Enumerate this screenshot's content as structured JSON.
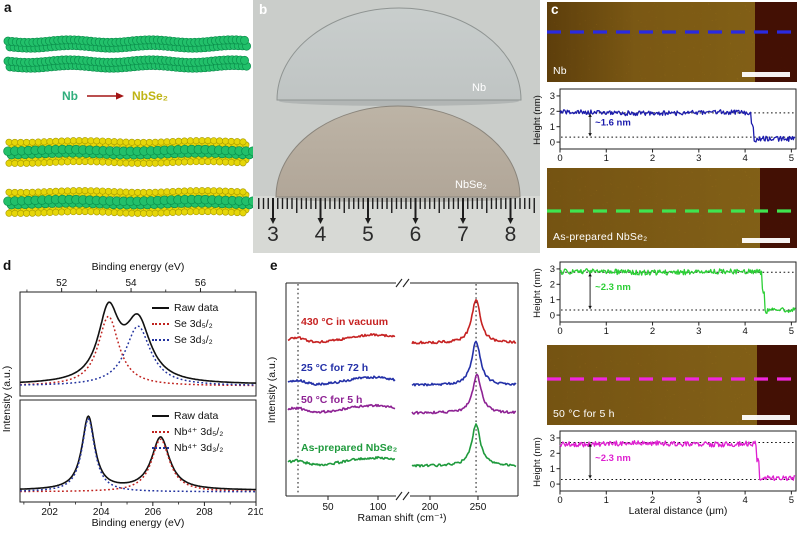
{
  "panels": {
    "a": {
      "label": "a",
      "reaction": {
        "from": "Nb",
        "to": "NbSe₂"
      },
      "colors": {
        "nb_atom": "#22c06a",
        "nb_atom_edge": "#0b8f4c",
        "se_atom": "#e6d609",
        "se_atom_edge": "#a79b00",
        "bond": "#86e3cf",
        "from_text": "#2fae7c",
        "to_text": "#bfb414",
        "arrow": "#a31515"
      }
    },
    "b": {
      "label": "b",
      "wafers": [
        {
          "label": "Nb"
        },
        {
          "label": "NbSe₂"
        }
      ],
      "ruler_numbers": [
        "3",
        "4",
        "5",
        "6",
        "7",
        "8"
      ]
    },
    "c": {
      "label": "c",
      "ylabel": "Height (nm)",
      "xlabel": "Lateral distance (μm)",
      "blocks": [
        {
          "image_label": "Nb",
          "annotation": "~1.6 nm",
          "scanline_color": "#2a2ae0"
        },
        {
          "image_label": "As-prepared NbSe₂",
          "annotation": "~2.3 nm",
          "scanline_color": "#3fe44f"
        },
        {
          "image_label": "50 °C for 5 h",
          "annotation": "~2.3 nm",
          "scanline_color": "#f026dd"
        }
      ]
    },
    "d": {
      "label": "d",
      "top_axis_title": "Binding energy (eV)",
      "bottom_axis_title": "Binding energy (eV)",
      "ylabel": "Intensity (a.u.)",
      "legend_top": [
        {
          "label": "Raw data",
          "color": "#111111",
          "style": "solid"
        },
        {
          "label": "Se 3d₅/₂",
          "color": "#c0231f",
          "style": "dotted"
        },
        {
          "label": "Se 3d₃/₂",
          "color": "#23339f",
          "style": "dotted"
        }
      ],
      "legend_bottom": [
        {
          "label": "Raw data",
          "color": "#111111",
          "style": "solid"
        },
        {
          "label": "Nb⁴⁺ 3d₅/₂",
          "color": "#c0231f",
          "style": "dotted"
        },
        {
          "label": "Nb⁴⁺ 3d₃/₂",
          "color": "#23339f",
          "style": "dotted"
        }
      ]
    },
    "e": {
      "label": "e",
      "xlabel": "Raman shift (cm⁻¹)",
      "ylabel": "Intensity (a.u.)"
    }
  },
  "chart_data": [
    {
      "id": "afm_height_profile_nb",
      "type": "line",
      "color": "#1c1cac",
      "xlabel": "Lateral distance (μm)",
      "ylabel": "Height (nm)",
      "xlim": [
        0,
        5.1
      ],
      "ylim": [
        -0.45,
        3.45
      ],
      "x_ticks": [
        "0",
        "1",
        "2",
        "3",
        "4",
        "5"
      ],
      "y_ticks": [
        "0",
        "1",
        "2",
        "3"
      ],
      "film_level_nm": 1.9,
      "substrate_level_nm": 0.25,
      "step_x_um": 4.15,
      "dotted_levels": [
        1.9,
        0.32
      ],
      "step_label": "~1.6 nm",
      "noise_amp": 0.16,
      "seed": 7
    },
    {
      "id": "afm_height_profile_as_prepared_nbse2",
      "type": "line",
      "color": "#2bcf35",
      "xlabel": "Lateral distance (μm)",
      "ylabel": "Height (nm)",
      "xlim": [
        0,
        5.1
      ],
      "ylim": [
        -0.45,
        3.45
      ],
      "x_ticks": [
        "0",
        "1",
        "2",
        "3",
        "4",
        "5"
      ],
      "y_ticks": [
        "0",
        "1",
        "2",
        "3"
      ],
      "film_level_nm": 2.8,
      "substrate_level_nm": 0.38,
      "step_x_um": 4.4,
      "dotted_levels": [
        2.78,
        0.33
      ],
      "step_label": "~2.3 nm",
      "noise_amp": 0.17,
      "seed": 13
    },
    {
      "id": "afm_height_profile_50c_5h",
      "type": "line",
      "color": "#de1fd0",
      "xlabel": "Lateral distance (μm)",
      "ylabel": "Height (nm)",
      "xlim": [
        0,
        5.1
      ],
      "ylim": [
        -0.45,
        3.45
      ],
      "x_ticks": [
        "0",
        "1",
        "2",
        "3",
        "4",
        "5"
      ],
      "y_ticks": [
        "0",
        "1",
        "2",
        "3"
      ],
      "film_level_nm": 2.62,
      "substrate_level_nm": 0.35,
      "step_x_um": 4.28,
      "dotted_levels": [
        2.7,
        0.3
      ],
      "step_label": "~2.3 nm",
      "noise_amp": 0.17,
      "seed": 23
    },
    {
      "id": "xps_se_3d",
      "type": "line",
      "axis_title": "Binding energy (eV)",
      "axis_side": "top",
      "xlim": [
        50.8,
        57.6
      ],
      "x_ticks": [
        52,
        54,
        56
      ],
      "x_minor_ticks": [
        51,
        53,
        55,
        57
      ],
      "baseline": 0.045,
      "series": [
        {
          "name": "Raw data",
          "style": "solid",
          "color": "#111111",
          "role": "envelope"
        },
        {
          "name": "Se 3d₅/₂",
          "style": "dotted",
          "color": "#c0231f",
          "center_eV": 53.35,
          "amplitude": 0.93,
          "gamma": 0.36
        },
        {
          "name": "Se 3d₃/₂",
          "style": "dotted",
          "color": "#23339f",
          "center_eV": 54.2,
          "amplitude": 0.8,
          "gamma": 0.44
        }
      ]
    },
    {
      "id": "xps_nb_3d",
      "type": "line",
      "axis_title": "Binding energy (eV)",
      "axis_side": "bottom",
      "xlim": [
        200.85,
        210.0
      ],
      "x_ticks": [
        202,
        204,
        206,
        208,
        210
      ],
      "x_minor_ticks": [
        201,
        203,
        205,
        207,
        209
      ],
      "baseline": 0.05,
      "series": [
        {
          "name": "Raw data",
          "style": "solid",
          "color": "#111111",
          "role": "envelope"
        },
        {
          "name": "Nb⁴⁺ 3d₅/₂",
          "style": "dotted",
          "color": "#c0231f",
          "center_eV": 206.3,
          "amplitude": 0.72,
          "gamma": 0.42
        },
        {
          "name": "Nb⁴⁺ 3d₃/₂",
          "style": "dotted",
          "color": "#23339f",
          "center_eV": 203.5,
          "amplitude": 1.0,
          "gamma": 0.3
        }
      ]
    },
    {
      "id": "raman_spectra",
      "type": "line",
      "xlabel": "Raman shift (cm⁻¹)",
      "ylabel": "Intensity (a.u.)",
      "xlim_left": [
        8,
        125
      ],
      "xlim_right": [
        184,
        292
      ],
      "x_ticks_left": [
        50,
        100
      ],
      "x_ticks_right": [
        200,
        250
      ],
      "axis_break": true,
      "dotted_lines_cm": [
        20,
        248
      ],
      "series": [
        {
          "name": "430 °C in vacuum",
          "color": "#c62222",
          "offset": 3.0,
          "main_peak": {
            "center": 248,
            "amp": 1.05,
            "width": 5.5
          },
          "hump": {
            "center": 96,
            "amp": 0.2,
            "width": 26
          },
          "low_bump": {
            "center": 18,
            "amp": 0.13,
            "width": 9
          },
          "seed": 3
        },
        {
          "name": "25 °C for 72 h",
          "color": "#2431a8",
          "offset": 1.97,
          "main_peak": {
            "center": 248,
            "amp": 1.08,
            "width": 5.5
          },
          "hump": {
            "center": 95,
            "amp": 0.19,
            "width": 26
          },
          "low_bump": {
            "center": 18,
            "amp": 0.12,
            "width": 9
          },
          "seed": 11
        },
        {
          "name": "50 °C for 5 h",
          "color": "#8e2394",
          "offset": 1.29,
          "main_peak": {
            "center": 249,
            "amp": 0.92,
            "width": 5.5
          },
          "hump": {
            "center": 95,
            "amp": 0.18,
            "width": 26
          },
          "low_bump": {
            "center": 18,
            "amp": 0.12,
            "width": 9
          },
          "seed": 17
        },
        {
          "name": "As-prepared NbSe₂",
          "color": "#1f9a3d",
          "offset": 0.0,
          "main_peak": {
            "center": 248,
            "amp": 1.0,
            "width": 5.5
          },
          "hump": {
            "center": 96,
            "amp": 0.2,
            "width": 27
          },
          "low_bump": {
            "center": 18,
            "amp": 0.13,
            "width": 9
          },
          "seed": 29
        }
      ]
    }
  ]
}
